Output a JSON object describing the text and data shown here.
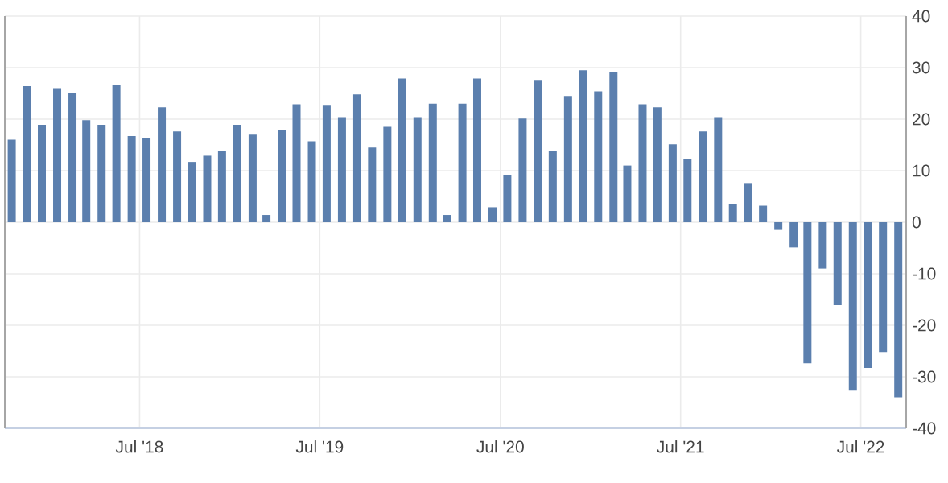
{
  "chart_data": {
    "type": "bar",
    "x": [
      "2017-10-15",
      "2017-11-15",
      "2017-12-15",
      "2018-01-15",
      "2018-02-15",
      "2018-03-15",
      "2018-04-15",
      "2018-05-15",
      "2018-06-15",
      "2018-07-15",
      "2018-08-15",
      "2018-09-15",
      "2018-10-15",
      "2018-11-15",
      "2018-12-15",
      "2019-01-15",
      "2019-02-15",
      "2019-03-15",
      "2019-04-15",
      "2019-05-15",
      "2019-06-15",
      "2019-07-15",
      "2019-08-15",
      "2019-09-15",
      "2019-10-15",
      "2019-11-15",
      "2019-12-15",
      "2020-01-15",
      "2020-02-15",
      "2020-03-15",
      "2020-04-15",
      "2020-05-15",
      "2020-06-15",
      "2020-07-15",
      "2020-08-15",
      "2020-09-15",
      "2020-10-15",
      "2020-11-15",
      "2020-12-15",
      "2021-01-15",
      "2021-02-15",
      "2021-03-15",
      "2021-04-15",
      "2021-05-15",
      "2021-06-15",
      "2021-07-15",
      "2021-08-15",
      "2021-09-15",
      "2021-10-15",
      "2021-11-15",
      "2021-12-15",
      "2022-01-15",
      "2022-02-15",
      "2022-03-15",
      "2022-04-15",
      "2022-05-15",
      "2022-06-15",
      "2022-07-15",
      "2022-08-15",
      "2022-09-15"
    ],
    "values": [
      16.0,
      26.4,
      18.9,
      26.0,
      25.1,
      19.8,
      18.9,
      26.7,
      16.7,
      16.4,
      22.3,
      17.6,
      11.7,
      12.9,
      13.9,
      18.9,
      17.0,
      1.4,
      17.9,
      22.9,
      15.7,
      22.6,
      20.4,
      24.8,
      14.5,
      18.5,
      27.9,
      20.4,
      23.0,
      1.4,
      23.0,
      27.9,
      2.9,
      9.2,
      20.1,
      27.6,
      13.9,
      24.5,
      29.5,
      25.4,
      29.2,
      11.0,
      22.9,
      22.3,
      15.1,
      12.3,
      17.6,
      20.4,
      3.5,
      7.6,
      3.2,
      -1.5,
      -4.9,
      -27.4,
      -9.0,
      -16.1,
      -32.7,
      -28.3,
      -25.2,
      -34.0
    ],
    "color": "#5b7fae",
    "xlim": [
      "2017-10-01",
      "2022-10-01"
    ],
    "xticks": [
      {
        "value": "2018-07-01",
        "label": "Jul '18"
      },
      {
        "value": "2019-07-01",
        "label": "Jul '19"
      },
      {
        "value": "2020-07-01",
        "label": "Jul '20"
      },
      {
        "value": "2021-07-01",
        "label": "Jul '21"
      },
      {
        "value": "2022-07-01",
        "label": "Jul '22"
      }
    ],
    "ylim": [
      -40,
      40
    ],
    "yticks": [
      -40,
      -30,
      -20,
      -10,
      0,
      10,
      20,
      30,
      40
    ],
    "grid": true
  }
}
